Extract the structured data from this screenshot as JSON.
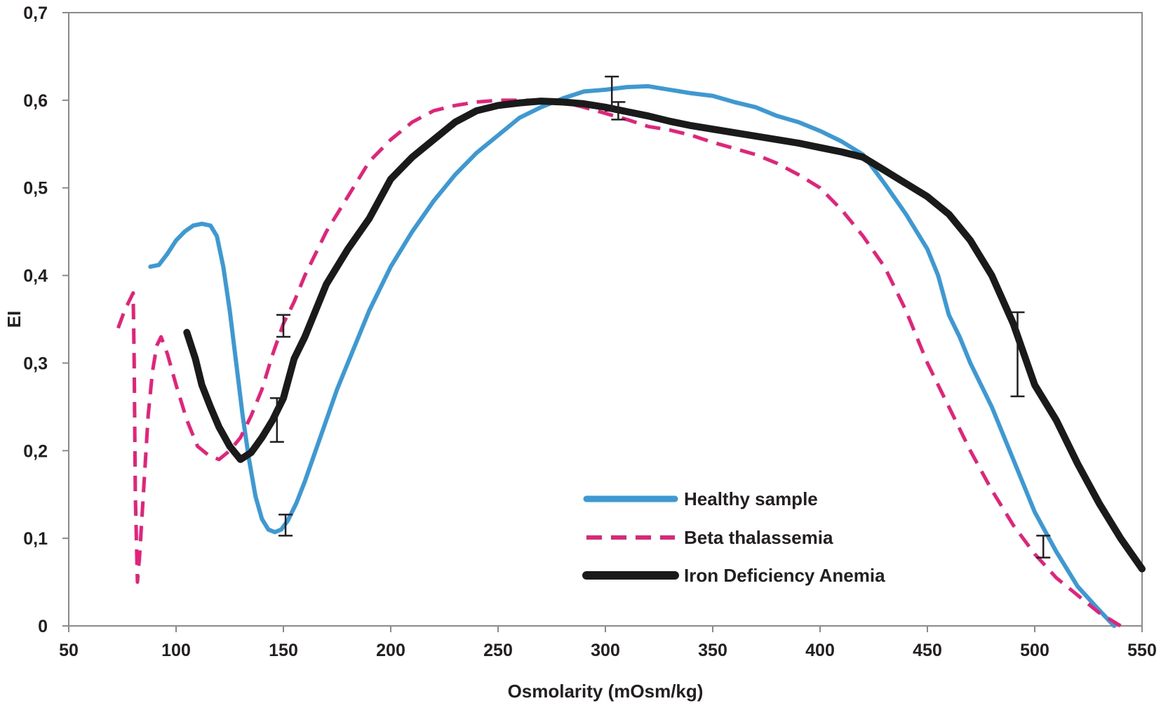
{
  "chart_data": {
    "type": "line",
    "title": "",
    "xlabel": "Osmolarity (mOsm/kg)",
    "ylabel": "EI",
    "xlim": [
      50,
      550
    ],
    "ylim": [
      0,
      0.7
    ],
    "x_ticks": [
      50,
      100,
      150,
      200,
      250,
      300,
      350,
      400,
      450,
      500,
      550
    ],
    "x_tick_labels": [
      "50",
      "100",
      "150",
      "200",
      "250",
      "300",
      "350",
      "400",
      "450",
      "500",
      "550"
    ],
    "y_ticks": [
      0,
      0.1,
      0.2,
      0.3,
      0.4,
      0.5,
      0.6,
      0.7
    ],
    "y_tick_labels": [
      "0",
      "0,1",
      "0,2",
      "0,3",
      "0,4",
      "0,5",
      "0,6",
      "0,7"
    ],
    "grid": false,
    "legend_position": "bottom-right",
    "series": [
      {
        "name": "Healthy sample",
        "color": "#3b9ad6",
        "style": "solid",
        "x": [
          88,
          92,
          96,
          100,
          104,
          108,
          112,
          116,
          119,
          122,
          125,
          128,
          131,
          134,
          137,
          140,
          143,
          146,
          149,
          152,
          156,
          160,
          165,
          170,
          175,
          180,
          190,
          200,
          210,
          220,
          230,
          240,
          250,
          260,
          270,
          280,
          290,
          300,
          310,
          320,
          330,
          340,
          350,
          360,
          370,
          380,
          390,
          400,
          410,
          420,
          430,
          440,
          450,
          455,
          460,
          465,
          470,
          480,
          490,
          500,
          510,
          520,
          530,
          537
        ],
        "y": [
          0.41,
          0.412,
          0.425,
          0.44,
          0.45,
          0.457,
          0.459,
          0.457,
          0.445,
          0.41,
          0.36,
          0.3,
          0.24,
          0.19,
          0.148,
          0.122,
          0.11,
          0.107,
          0.11,
          0.12,
          0.14,
          0.165,
          0.2,
          0.235,
          0.27,
          0.3,
          0.36,
          0.41,
          0.45,
          0.485,
          0.515,
          0.54,
          0.56,
          0.58,
          0.592,
          0.602,
          0.61,
          0.612,
          0.615,
          0.616,
          0.612,
          0.608,
          0.605,
          0.598,
          0.592,
          0.582,
          0.575,
          0.565,
          0.553,
          0.538,
          0.505,
          0.47,
          0.43,
          0.4,
          0.355,
          0.33,
          0.3,
          0.25,
          0.19,
          0.13,
          0.085,
          0.045,
          0.018,
          0
        ]
      },
      {
        "name": "Beta thalassemia",
        "color": "#e8207a",
        "style": "dashed",
        "x": [
          73,
          76,
          79,
          80,
          80.5,
          81,
          82,
          83,
          85,
          87,
          89,
          91,
          93,
          96,
          100,
          105,
          110,
          115,
          120,
          125,
          130,
          135,
          140,
          145,
          150,
          155,
          160,
          170,
          180,
          190,
          200,
          210,
          220,
          230,
          240,
          250,
          260,
          270,
          280,
          290,
          300,
          310,
          320,
          330,
          340,
          350,
          360,
          370,
          380,
          390,
          400,
          410,
          420,
          430,
          440,
          450,
          460,
          470,
          480,
          490,
          500,
          510,
          520,
          530,
          540
        ],
        "y": [
          0.34,
          0.36,
          0.375,
          0.38,
          0.3,
          0.15,
          0.05,
          0.08,
          0.16,
          0.24,
          0.29,
          0.32,
          0.33,
          0.31,
          0.275,
          0.235,
          0.205,
          0.195,
          0.19,
          0.2,
          0.215,
          0.24,
          0.27,
          0.31,
          0.345,
          0.37,
          0.4,
          0.45,
          0.49,
          0.53,
          0.555,
          0.575,
          0.588,
          0.594,
          0.598,
          0.6,
          0.6,
          0.6,
          0.598,
          0.592,
          0.585,
          0.578,
          0.57,
          0.566,
          0.56,
          0.552,
          0.545,
          0.538,
          0.528,
          0.515,
          0.5,
          0.475,
          0.445,
          0.41,
          0.36,
          0.3,
          0.25,
          0.2,
          0.155,
          0.115,
          0.082,
          0.055,
          0.035,
          0.015,
          0
        ]
      },
      {
        "name": "Iron Deficiency Anemia",
        "color": "#1a1a1a",
        "style": "thick",
        "x": [
          105,
          109,
          112,
          116,
          120,
          125,
          130,
          135,
          140,
          145,
          150,
          155,
          160,
          165,
          170,
          175,
          180,
          190,
          200,
          210,
          220,
          230,
          240,
          250,
          260,
          270,
          280,
          290,
          300,
          310,
          320,
          330,
          340,
          350,
          360,
          370,
          380,
          390,
          400,
          410,
          420,
          430,
          440,
          450,
          460,
          470,
          480,
          490,
          495,
          500,
          510,
          520,
          530,
          540,
          550
        ],
        "y": [
          0.335,
          0.305,
          0.275,
          0.25,
          0.227,
          0.205,
          0.19,
          0.198,
          0.215,
          0.235,
          0.26,
          0.305,
          0.33,
          0.36,
          0.39,
          0.41,
          0.43,
          0.465,
          0.51,
          0.535,
          0.555,
          0.575,
          0.588,
          0.594,
          0.597,
          0.599,
          0.598,
          0.596,
          0.592,
          0.587,
          0.582,
          0.576,
          0.571,
          0.567,
          0.563,
          0.559,
          0.555,
          0.551,
          0.546,
          0.541,
          0.535,
          0.52,
          0.505,
          0.49,
          0.47,
          0.44,
          0.4,
          0.345,
          0.31,
          0.275,
          0.235,
          0.185,
          0.14,
          0.1,
          0.065
        ]
      }
    ],
    "error_bars": [
      {
        "x": 147,
        "low": 0.21,
        "high": 0.26
      },
      {
        "x": 150,
        "low": 0.33,
        "high": 0.355
      },
      {
        "x": 151,
        "low": 0.103,
        "high": 0.127
      },
      {
        "x": 303,
        "low": 0.588,
        "high": 0.627
      },
      {
        "x": 306,
        "low": 0.578,
        "high": 0.598
      },
      {
        "x": 492,
        "low": 0.262,
        "high": 0.358
      },
      {
        "x": 504,
        "low": 0.078,
        "high": 0.103
      }
    ]
  }
}
